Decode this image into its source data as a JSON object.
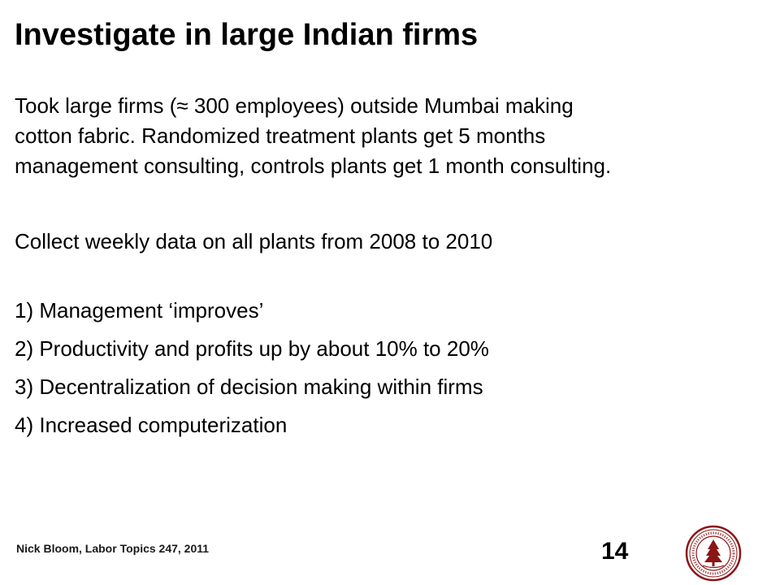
{
  "slide": {
    "title": "Investigate in large Indian firms",
    "intro_lines": [
      "Took large firms (≈ 300 employees) outside Mumbai making",
      "cotton fabric. Randomized treatment plants get 5 months",
      "management consulting, controls plants get 1 month consulting."
    ],
    "collect": "Collect weekly data on all plants from 2008 to 2010",
    "findings": [
      "1) Management ‘improves’",
      "2) Productivity and profits up by about 10% to 20%",
      "3) Decentralization of decision making within firms",
      "4) Increased computerization"
    ]
  },
  "footer": {
    "author": "Nick Bloom, Labor Topics 247, 2011",
    "page_number": "14"
  },
  "seal": {
    "icon": "stanford-seal-icon",
    "color": "#8c1515"
  }
}
